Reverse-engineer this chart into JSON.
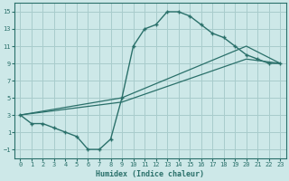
{
  "xlabel": "Humidex (Indice chaleur)",
  "xlim": [
    -0.5,
    23.5
  ],
  "ylim": [
    -2,
    16
  ],
  "xticks": [
    0,
    1,
    2,
    3,
    4,
    5,
    6,
    7,
    8,
    9,
    10,
    11,
    12,
    13,
    14,
    15,
    16,
    17,
    18,
    19,
    20,
    21,
    22,
    23
  ],
  "yticks": [
    -1,
    1,
    3,
    5,
    7,
    9,
    11,
    13,
    15
  ],
  "bg_color": "#cde8e8",
  "grid_color": "#a8cccc",
  "line_color": "#2a706a",
  "main_x": [
    0,
    1,
    2,
    3,
    4,
    5,
    6,
    7,
    8,
    9,
    10,
    11,
    12,
    13,
    14,
    15,
    16,
    17,
    18,
    19,
    20,
    21,
    22,
    23
  ],
  "main_y": [
    3,
    2,
    2,
    1.5,
    1,
    0.5,
    -1,
    -1,
    0.2,
    5,
    11,
    13,
    13.5,
    15,
    15,
    14.5,
    13.5,
    12.5,
    12,
    11,
    10,
    9.5,
    9,
    9
  ],
  "line1_x": [
    0,
    9,
    20,
    23
  ],
  "line1_y": [
    3,
    5,
    11,
    9
  ],
  "line2_x": [
    0,
    9,
    20,
    23
  ],
  "line2_y": [
    3,
    4.5,
    9.5,
    9
  ]
}
